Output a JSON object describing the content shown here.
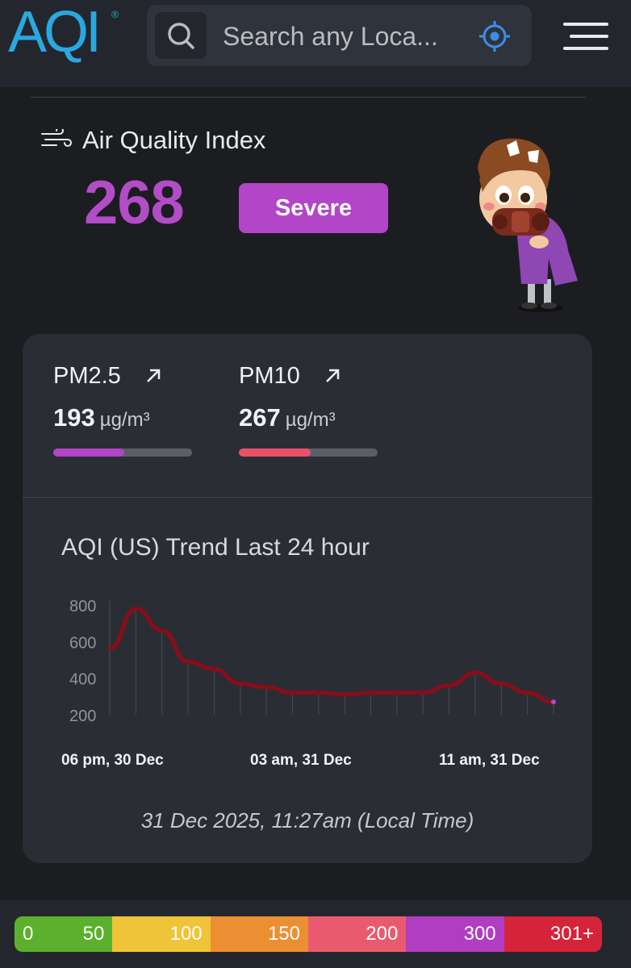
{
  "header": {
    "logo_text": "AQI",
    "logo_mark": "®",
    "search_placeholder": "Search any Loca...",
    "icons": {
      "search": "search-icon",
      "locate": "crosshair-icon",
      "menu": "hamburger-icon"
    }
  },
  "aqi": {
    "label": "Air Quality Index",
    "value": "268",
    "status": "Severe",
    "status_color": "#b245c8"
  },
  "pollutants": [
    {
      "name": "PM2.5",
      "value": "193",
      "unit": "µg/m³",
      "level": 0.51,
      "color": "#b245c8"
    },
    {
      "name": "PM10",
      "value": "267",
      "unit": "µg/m³",
      "level": 0.52,
      "color": "#e9506a"
    }
  ],
  "trend": {
    "title": "AQI (US) Trend Last 24 hour"
  },
  "chart_data": {
    "type": "line",
    "title": "AQI (US) Trend Last 24 hour",
    "y_ticks": [
      "800",
      "600",
      "400",
      "200"
    ],
    "ylim": [
      200,
      800
    ],
    "x_labels": [
      "06 pm, 30 Dec",
      "03 am, 31 Dec",
      "11 am, 31 Dec"
    ],
    "series": [
      {
        "values": [
          560,
          780,
          660,
          490,
          450,
          370,
          350,
          320,
          320,
          310,
          320,
          320,
          320,
          360,
          430,
          370,
          320,
          270
        ]
      }
    ],
    "line_color": "#8b0c1a",
    "grid": "vertical"
  },
  "timestamp": "31 Dec 2025, 11:27am (Local Time)",
  "scale": [
    {
      "left": "0",
      "right": "50",
      "color": "#5cb02d"
    },
    {
      "left": "",
      "right": "100",
      "color": "#efc438"
    },
    {
      "left": "",
      "right": "150",
      "color": "#ec8f33"
    },
    {
      "left": "",
      "right": "200",
      "color": "#ea5a6f"
    },
    {
      "left": "",
      "right": "300",
      "color": "#b13dc2"
    },
    {
      "left": "",
      "right": "301+",
      "color": "#d5233a"
    }
  ]
}
